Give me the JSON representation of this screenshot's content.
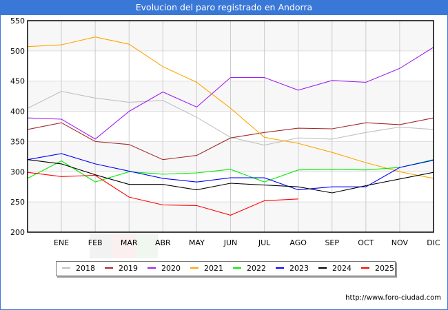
{
  "header": {
    "title": "Evolucion del paro registrado en Andorra"
  },
  "footer": {
    "url": "http://www.foro-ciudad.com"
  },
  "chart_data": {
    "type": "line",
    "title": "Evolucion del paro registrado en Andorra",
    "xlabel": "",
    "ylabel": "",
    "categories": [
      "",
      "ENE",
      "FEB",
      "MAR",
      "ABR",
      "MAY",
      "JUN",
      "JUL",
      "AGO",
      "SEP",
      "OCT",
      "NOV",
      "DIC"
    ],
    "ylim": [
      200,
      550
    ],
    "yticks": [
      200,
      250,
      300,
      350,
      400,
      450,
      500,
      550
    ],
    "grid": true,
    "legend_position": "bottom",
    "series": [
      {
        "name": "2018",
        "color": "#c0c0c0",
        "values": [
          405,
          433,
          422,
          415,
          418,
          390,
          357,
          344,
          356,
          354,
          365,
          374,
          370
        ]
      },
      {
        "name": "2019",
        "color": "#a52a2a",
        "values": [
          370,
          381,
          350,
          345,
          320,
          327,
          356,
          365,
          372,
          371,
          381,
          378,
          389
        ]
      },
      {
        "name": "2020",
        "color": "#a020f0",
        "values": [
          389,
          387,
          354,
          400,
          432,
          407,
          456,
          456,
          435,
          451,
          448,
          471,
          506
        ]
      },
      {
        "name": "2021",
        "color": "#ffa500",
        "values": [
          507,
          510,
          523,
          511,
          474,
          448,
          405,
          357,
          347,
          332,
          315,
          300,
          289
        ]
      },
      {
        "name": "2022",
        "color": "#00ee00",
        "values": [
          289,
          318,
          283,
          300,
          296,
          298,
          304,
          283,
          303,
          304,
          303,
          307,
          320
        ]
      },
      {
        "name": "2023",
        "color": "#0000ff",
        "values": [
          320,
          330,
          313,
          301,
          289,
          283,
          290,
          290,
          270,
          275,
          275,
          307,
          319
        ]
      },
      {
        "name": "2024",
        "color": "#000000",
        "values": [
          320,
          313,
          295,
          279,
          279,
          270,
          281,
          278,
          275,
          265,
          277,
          288,
          299
        ]
      },
      {
        "name": "2025",
        "color": "#ff0000",
        "values": [
          299,
          292,
          294,
          258,
          245,
          244,
          228,
          252,
          255
        ]
      }
    ]
  }
}
